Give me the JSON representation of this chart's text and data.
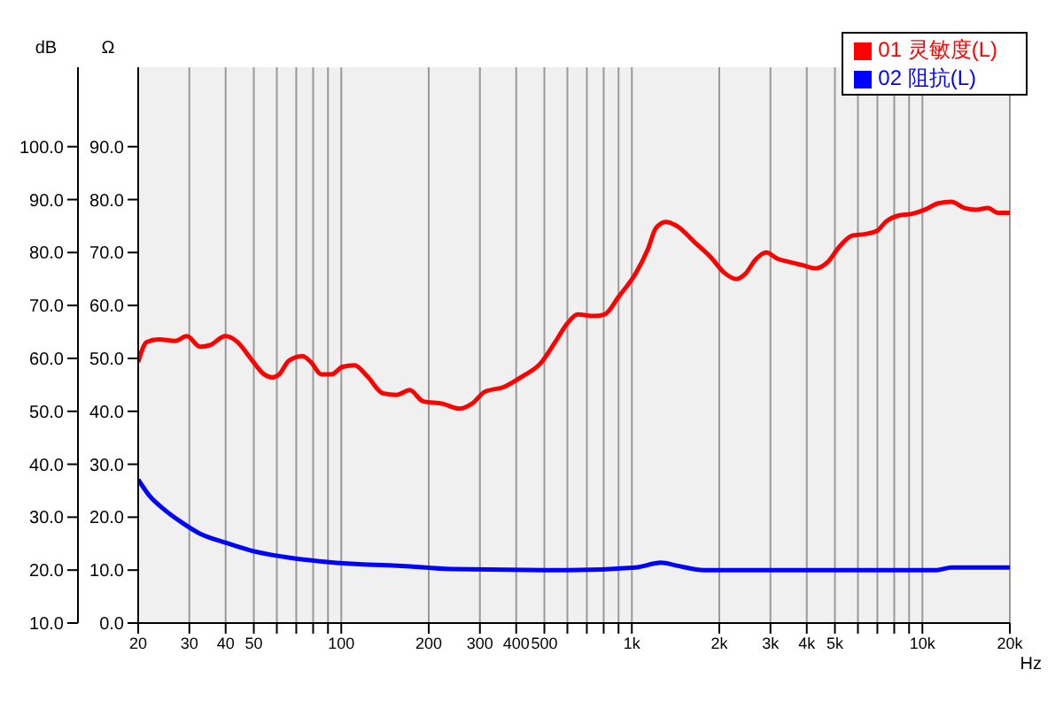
{
  "chart_data": {
    "type": "line",
    "xlabel": "Hz",
    "ylabel": "Ω",
    "y2label": "dB",
    "log": "x",
    "xlim": [
      20,
      20000
    ],
    "xticks": [
      20,
      30,
      40,
      50,
      {
        "value": 60,
        "label": null
      },
      {
        "value": 70,
        "label": null
      },
      {
        "value": 80,
        "label": null
      },
      {
        "value": 90,
        "label": null
      },
      100,
      200,
      300,
      400,
      500,
      {
        "value": 600,
        "label": null
      },
      {
        "value": 700,
        "label": null
      },
      {
        "value": 800,
        "label": null
      },
      {
        "value": 900,
        "label": null
      },
      {
        "value": 1000,
        "label": "1k"
      },
      {
        "value": 2000,
        "label": "2k"
      },
      {
        "value": 3000,
        "label": "3k"
      },
      {
        "value": 4000,
        "label": "4k"
      },
      {
        "value": 5000,
        "label": "5k"
      },
      {
        "value": 6000,
        "label": null
      },
      {
        "value": 7000,
        "label": null
      },
      {
        "value": 8000,
        "label": null
      },
      {
        "value": 9000,
        "label": null
      },
      {
        "value": 10000,
        "label": "10k"
      },
      {
        "value": 20000,
        "label": "20k"
      }
    ],
    "ylim": [
      0,
      105
    ],
    "yticks": [
      {
        "value": 0,
        "label": "0.0"
      },
      {
        "value": 10,
        "label": "10.0"
      },
      {
        "value": 20,
        "label": "20.0"
      },
      {
        "value": 30,
        "label": "30.0"
      },
      {
        "value": 40,
        "label": "40.0"
      },
      {
        "value": 50,
        "label": "50.0"
      },
      {
        "value": 60,
        "label": "60.0"
      },
      {
        "value": 70,
        "label": "70.0"
      },
      {
        "value": 80,
        "label": "80.0"
      },
      {
        "value": 90,
        "label": "90.0"
      }
    ],
    "y2lim": [
      10,
      115
    ],
    "y2ticks": [
      {
        "value": 10,
        "label": "10.0"
      },
      {
        "value": 20,
        "label": "20.0"
      },
      {
        "value": 30,
        "label": "30.0"
      },
      {
        "value": 40,
        "label": "40.0"
      },
      {
        "value": 50,
        "label": "50.0"
      },
      {
        "value": 60,
        "label": "60.0"
      },
      {
        "value": 70,
        "label": "70.0"
      },
      {
        "value": 80,
        "label": "80.0"
      },
      {
        "value": 90,
        "label": "90.0"
      },
      {
        "value": 100,
        "label": "100.0"
      }
    ],
    "grid": "x",
    "legend": "top right",
    "marker": "none",
    "line_style": "solid",
    "series": [
      {
        "name": "01 灵敏度(L)",
        "color": "#ff0000",
        "axis": "y2",
        "x": [
          20,
          21.4,
          23.5,
          26.8,
          29.4,
          32.7,
          35.3,
          39.9,
          43.9,
          48.9,
          54.2,
          57.9,
          61.2,
          66.1,
          73.6,
          78.6,
          85.3,
          92.6,
          101,
          111,
          123,
          139,
          155,
          172,
          191,
          224,
          255,
          281,
          312,
          363,
          420,
          484,
          545,
          600,
          651,
          742,
          805,
          905,
          1035,
          1135,
          1210,
          1310,
          1440,
          1640,
          1870,
          2080,
          2290,
          2450,
          2680,
          2900,
          3180,
          3490,
          3870,
          4300,
          4720,
          5180,
          5740,
          6370,
          6990,
          7480,
          8300,
          9210,
          10200,
          11330,
          12580,
          13960,
          15310,
          16800,
          18200,
          20000
        ],
        "values": [
          59.3,
          63.1,
          63.6,
          63.3,
          64.2,
          62.2,
          62.5,
          64.2,
          63.1,
          59.9,
          57,
          56.4,
          57,
          59.6,
          60.4,
          59.3,
          57,
          57,
          58.4,
          58.7,
          56.6,
          53.4,
          53.1,
          54,
          51.9,
          51.4,
          50.5,
          51.4,
          53.7,
          54.6,
          56.6,
          59,
          63.1,
          66.6,
          68.3,
          68,
          68.3,
          71.8,
          76.2,
          80.6,
          84.6,
          85.8,
          84.9,
          82,
          79.1,
          76.2,
          75,
          75.9,
          78.8,
          80,
          78.8,
          78.2,
          77.6,
          77,
          78.2,
          81.1,
          83.2,
          83.5,
          84.1,
          85.8,
          87,
          87.3,
          88.1,
          89.3,
          89.6,
          88.4,
          88.1,
          88.4,
          87.5,
          87.5
        ]
      },
      {
        "name": "02 阻抗(L)",
        "color": "#0000ff",
        "axis": "y",
        "x": [
          20,
          21.9,
          24.4,
          27.9,
          32.6,
          39.9,
          48.9,
          63.6,
          82.9,
          115,
          161,
          240,
          606,
          1030,
          1260,
          1440,
          1770,
          11200,
          12580,
          20000
        ],
        "values": [
          27.1,
          24,
          21.6,
          19.2,
          16.9,
          15.2,
          13.7,
          12.5,
          11.7,
          11.1,
          10.8,
          10.2,
          10,
          10.5,
          11.4,
          10.8,
          10,
          10,
          10.5,
          10.5
        ]
      }
    ]
  }
}
